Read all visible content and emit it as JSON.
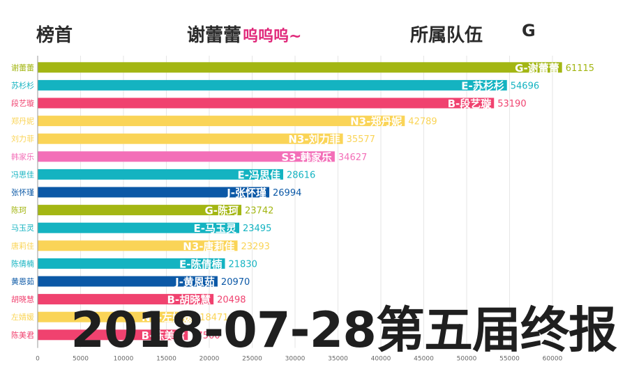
{
  "header": {
    "leader_label": "榜首",
    "leader_name": "谢蕾蕾",
    "leader_suffix": "呜呜呜~",
    "team_label": "所属队伍",
    "team_value": "G"
  },
  "date_overlay": "2018-07-28第五届终报",
  "colors": {
    "G": "#a3b613",
    "E": "#14b3c1",
    "B": "#f0426f",
    "N3": "#fad457",
    "S3": "#f36fb8",
    "J": "#0b58a6"
  },
  "chart_data": {
    "type": "bar",
    "orientation": "horizontal",
    "categories": [
      "谢蕾蕾",
      "苏杉杉",
      "段艺璇",
      "郑丹妮",
      "刘力菲",
      "韩家乐",
      "冯思佳",
      "张怀瑾",
      "陈珂",
      "马玉灵",
      "唐莉佳",
      "陈倩楠",
      "黄恩茹",
      "胡晓慧",
      "左婧媛",
      "陈美君"
    ],
    "bar_labels": [
      "G-谢蕾蕾",
      "E-苏杉杉",
      "B-段艺璇",
      "N3-郑丹妮",
      "N3-刘力菲",
      "S3-韩家乐",
      "E-冯思佳",
      "J-张怀瑾",
      "G-陈珂",
      "E-马玉灵",
      "N3-唐莉佳",
      "E-陈倩楠",
      "J-黄恩茹",
      "B-胡晓慧",
      "N3-左婧媛",
      "B-陈美君"
    ],
    "teams": [
      "G",
      "E",
      "B",
      "N3",
      "N3",
      "S3",
      "E",
      "J",
      "G",
      "E",
      "N3",
      "E",
      "J",
      "B",
      "N3",
      "B"
    ],
    "values": [
      61115,
      54696,
      53190,
      42789,
      35577,
      34627,
      28616,
      26994,
      23742,
      23495,
      23293,
      21830,
      20970,
      20498,
      18471,
      17500
    ],
    "value_labels": [
      "61115",
      "54696",
      "53190",
      "42789",
      "35577",
      "34627",
      "28616",
      "26994",
      "23742",
      "23495",
      "23293",
      "21830",
      "20970",
      "20498",
      "18471",
      "17500"
    ],
    "x_ticks": [
      0,
      5000,
      10000,
      15000,
      20000,
      25000,
      30000,
      35000,
      40000,
      45000,
      50000,
      55000,
      60000
    ],
    "xlim": [
      0,
      62500
    ],
    "grid": true
  }
}
